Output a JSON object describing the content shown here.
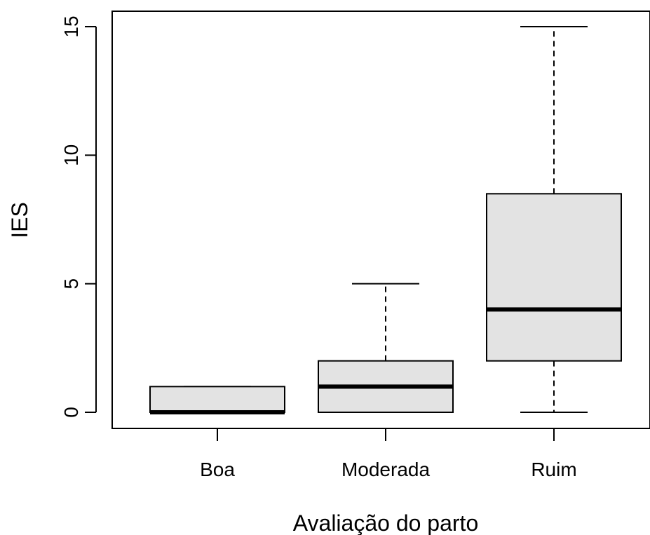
{
  "chart_data": {
    "type": "boxplot",
    "title": "",
    "xlabel": "Avaliação do parto",
    "ylabel": "IES",
    "ylim": [
      -0.6,
      15.6
    ],
    "y_ticks": [
      "0",
      "5",
      "10",
      "15"
    ],
    "categories": [
      "Boa",
      "Moderada",
      "Ruim"
    ],
    "boxes": [
      {
        "category": "Boa",
        "whisker_low": 0,
        "q1": 0,
        "median": 0,
        "q3": 1,
        "whisker_high": 1
      },
      {
        "category": "Moderada",
        "whisker_low": 0,
        "q1": 0,
        "median": 1,
        "q3": 2,
        "whisker_high": 5
      },
      {
        "category": "Ruim",
        "whisker_low": 0,
        "q1": 2,
        "median": 4,
        "q3": 8.5,
        "whisker_high": 15
      }
    ],
    "box_fill": "#e3e3e3",
    "grid": false,
    "legend": "none"
  }
}
